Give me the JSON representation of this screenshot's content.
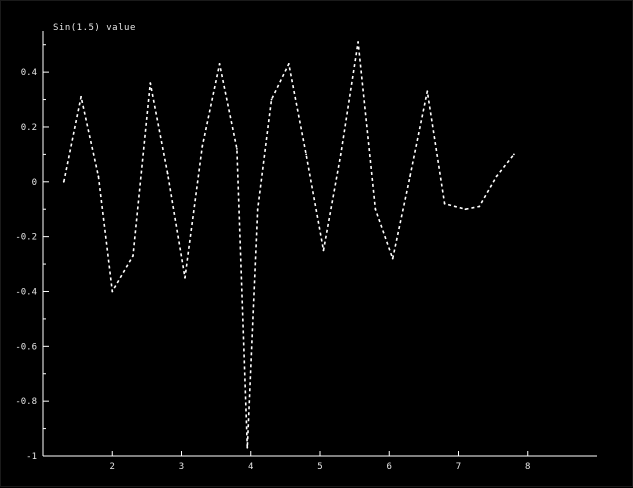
{
  "chart_data": {
    "type": "line",
    "title": "Sin(1.5) value",
    "xlabel": "",
    "ylabel": "",
    "xlim": [
      1,
      9
    ],
    "ylim": [
      -1,
      0.55
    ],
    "grid": false,
    "line_style": "dotted",
    "colors": {
      "background": "#000000",
      "line": "#ffffff",
      "axis": "#ffffff",
      "text": "#e6e6e6"
    },
    "x_ticks": [
      {
        "value": 2,
        "label": "2"
      },
      {
        "value": 3,
        "label": "3"
      },
      {
        "value": 4,
        "label": "4"
      },
      {
        "value": 5,
        "label": "5"
      },
      {
        "value": 6,
        "label": "6"
      },
      {
        "value": 7,
        "label": "7"
      },
      {
        "value": 8,
        "label": "8"
      }
    ],
    "y_ticks": [
      {
        "value": 0.4,
        "label": "0.4"
      },
      {
        "value": 0.2,
        "label": "0.2"
      },
      {
        "value": 0,
        "label": "0"
      },
      {
        "value": -0.2,
        "label": "-0.2"
      },
      {
        "value": -0.4,
        "label": "-0.4"
      },
      {
        "value": -0.6,
        "label": "-0.6"
      },
      {
        "value": -0.8,
        "label": "-0.8"
      },
      {
        "value": -1,
        "label": "-1"
      }
    ],
    "y_minor_ticks": [
      0.5,
      0.3,
      0.1,
      -0.1,
      -0.3,
      -0.5,
      -0.7,
      -0.9
    ],
    "series": [
      {
        "x": [
          1.3,
          1.55,
          1.8,
          2.0,
          2.3,
          2.55,
          2.8,
          3.05,
          3.3,
          3.55,
          3.8,
          3.95,
          4.1,
          4.3,
          4.55,
          4.8,
          5.05,
          5.3,
          5.55,
          5.8,
          6.05,
          6.3,
          6.55,
          6.8,
          7.1,
          7.3,
          7.55,
          7.8
        ],
        "y": [
          0.0,
          0.31,
          0.02,
          -0.4,
          -0.27,
          0.36,
          0.03,
          -0.35,
          0.13,
          0.43,
          0.12,
          -0.97,
          -0.1,
          0.3,
          0.43,
          0.1,
          -0.25,
          0.1,
          0.51,
          -0.1,
          -0.28,
          0.02,
          0.33,
          -0.08,
          -0.1,
          -0.09,
          0.02,
          0.1
        ]
      }
    ]
  }
}
